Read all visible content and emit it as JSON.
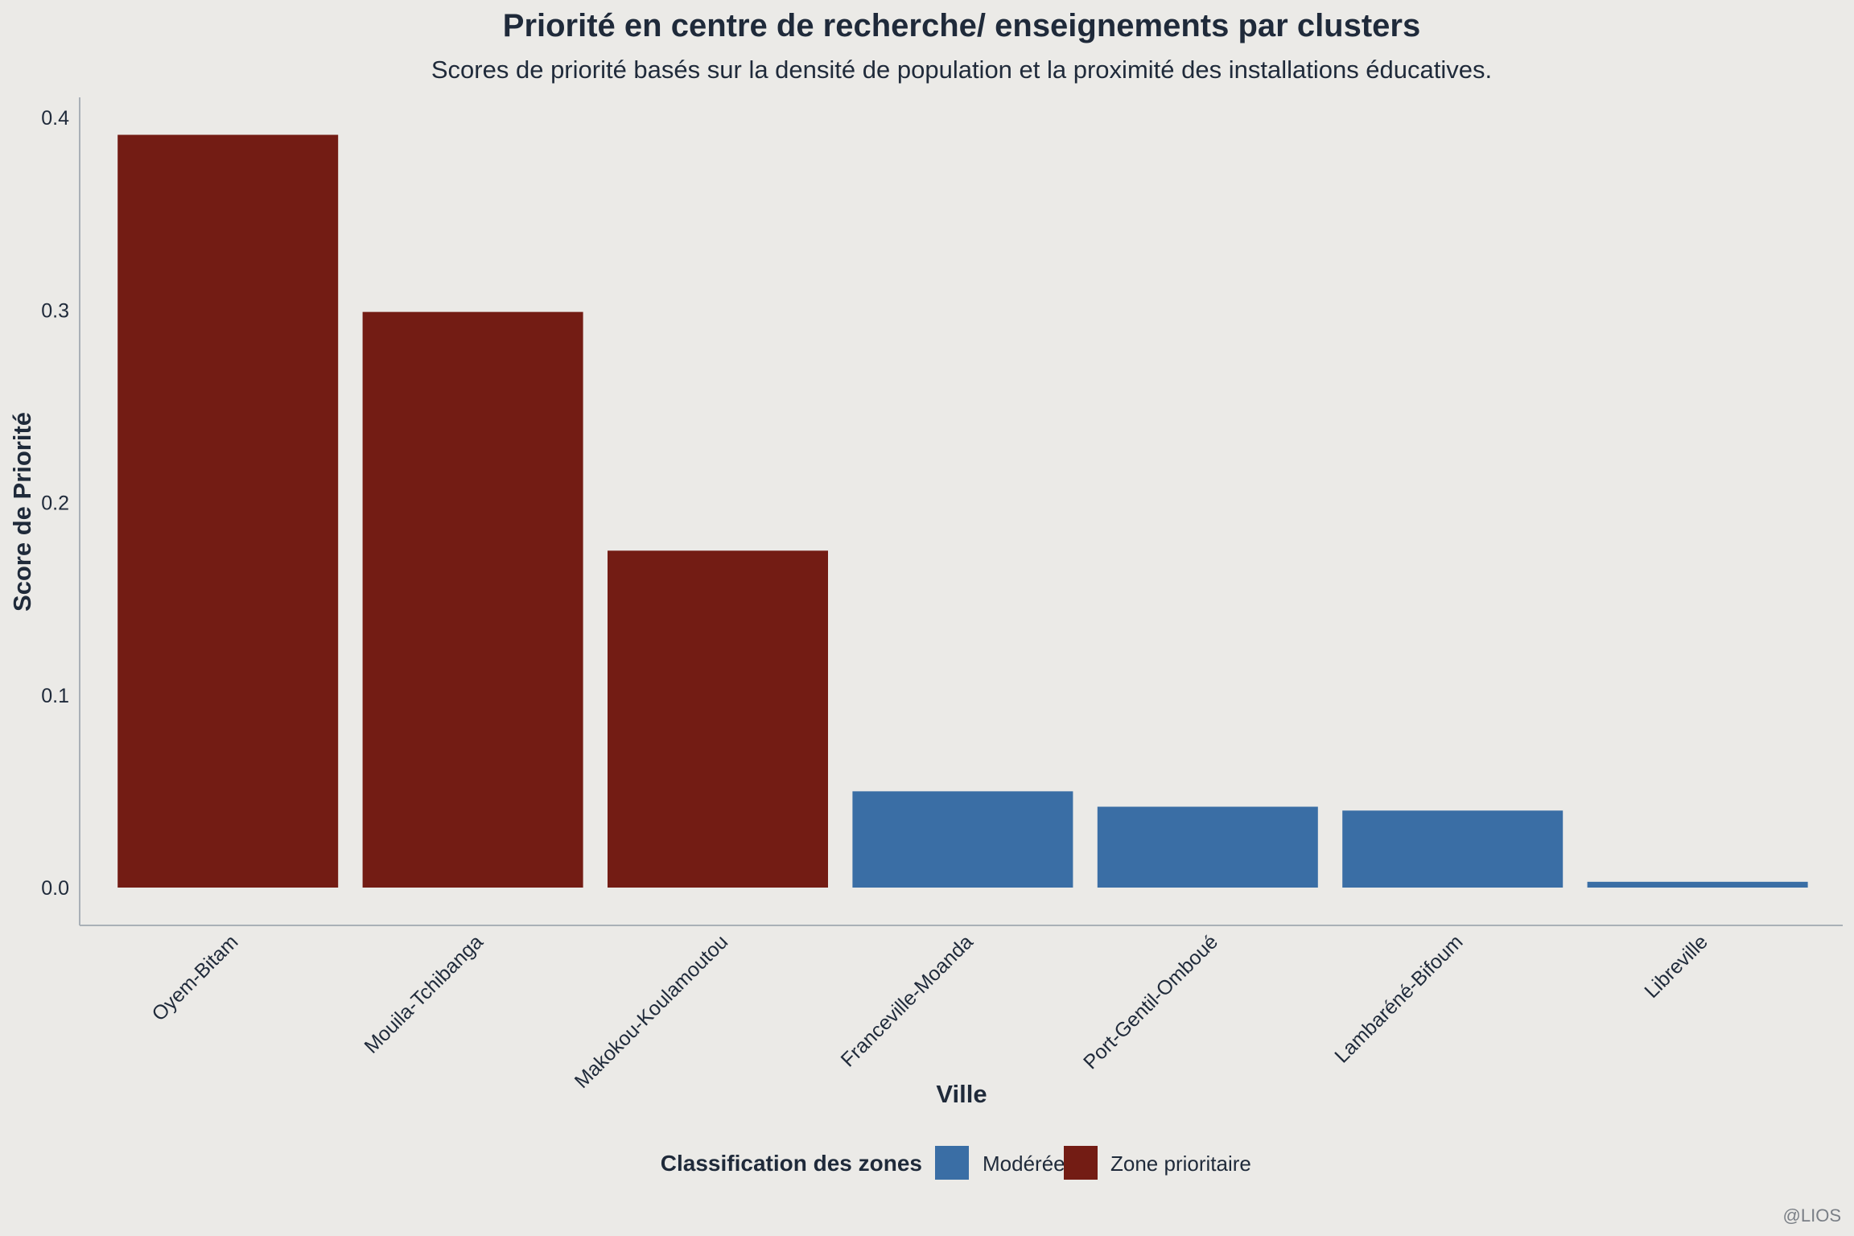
{
  "chart_data": {
    "type": "bar",
    "title": "Priorité en centre de recherche/  enseignements par clusters",
    "subtitle": "Scores de priorité basés sur la densité de population et la proximité des installations éducatives.",
    "xlabel": "Ville",
    "ylabel": "Score de Priorité",
    "ylim": [
      0,
      0.4
    ],
    "yticks": [
      "0.0",
      "0.1",
      "0.2",
      "0.3",
      "0.4"
    ],
    "categories": [
      "Oyem-Bitam",
      "Mouila-Tchibanga",
      "Makokou-Koulamoutou",
      "Franceville-Moanda",
      "Port-Gentil-Omboué",
      "Lambaréné-Bifoum",
      "Libreville"
    ],
    "values": [
      0.391,
      0.299,
      0.175,
      0.05,
      0.042,
      0.04,
      0.003
    ],
    "classes": [
      "Zone prioritaire",
      "Zone prioritaire",
      "Zone prioritaire",
      "Modérée",
      "Modérée",
      "Modérée",
      "Modérée"
    ],
    "legend": {
      "title": "Classification des zones",
      "position": "bottom",
      "entries": [
        {
          "label": "Modérée",
          "color": "#3a6ea5"
        },
        {
          "label": "Zone prioritaire",
          "color": "#731c14"
        }
      ]
    },
    "grid": false
  },
  "credit": "@LIOS"
}
